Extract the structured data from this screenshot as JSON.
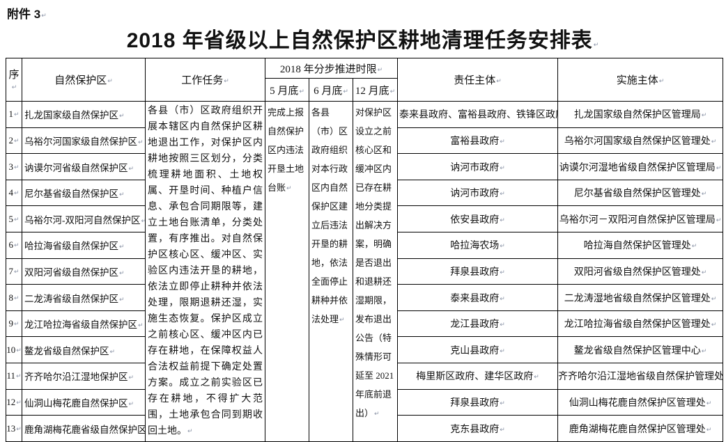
{
  "page": {
    "attachment_label": "附件 3",
    "title": "2018 年省级以上自然保护区耕地清理任务安排表"
  },
  "table": {
    "columns": {
      "no": "序",
      "reserve": "自然保护区",
      "task": "工作任务",
      "timeline_group": "2018 年分步推进时限",
      "timeline_may": "5 月底",
      "timeline_june": "6 月底",
      "timeline_december": "12 月底",
      "responsible": "责任主体",
      "implementer": "实施主体"
    },
    "merged": {
      "task": "各县（市）区政府组织开展本辖区内自然保护区耕地退出工作，对保护区内耕地按照三区划分，分类梳理耕地面积、土地权属、开垦时间、种植户信息、承包合同期限等，建立土地台账清单，分类处置，有序推出。对自然保护区核心区、缓冲区、实验区内违法开垦的耕地，依法立即停止耕种并依法处理，限期退耕还湿，实施生态恢复。保护区成立之前核心区、缓冲区内已存在耕地，在保障权益人合法权益前提下确定处置方案。成立之前实验区已存在耕地，不得扩大范围，土地承包合同到期收回土地。",
      "may": "完成上报自然保护区内违法开垦土地台账",
      "june": "各县（市）区政府组织对本行政区内自然保护区建立后违法开垦的耕地，依法全面停止耕种并依法处理",
      "december": "对保护区设立之前核心区和缓冲区内已存在耕地分类提出解决方案，明确是否退出和退耕还湿期限，发布退出公告（特殊情形可延至 2021 年底前退出）"
    },
    "rows": [
      {
        "no": "1",
        "reserve": "扎龙国家级自然保护区",
        "responsible": "泰来县政府、富裕县政府、铁锋区政府、",
        "implementer": "扎龙国家级自然保护区管理局"
      },
      {
        "no": "2",
        "reserve": "乌裕尔河国家级自然保护区",
        "responsible": "富裕县政府",
        "implementer": "乌裕尔河国家级自然保护区管理处"
      },
      {
        "no": "3",
        "reserve": "讷谟尔河省级自然保护区",
        "responsible": "讷河市政府",
        "implementer": "讷谟尔河湿地省级自然保护区管理局"
      },
      {
        "no": "4",
        "reserve": "尼尔基省级自然保护区",
        "responsible": "讷河市政府",
        "implementer": "尼尔基省级自然保护区管理处"
      },
      {
        "no": "5",
        "reserve": "乌裕尔河-双阳河自然保护区",
        "responsible": "依安县政府",
        "implementer": "乌裕尔河－双阳河自然保护区管理局"
      },
      {
        "no": "6",
        "reserve": "哈拉海省级自然保护区",
        "responsible": "哈拉海农场",
        "implementer": "哈拉海自然保护区管理处"
      },
      {
        "no": "7",
        "reserve": "双阳河省级自然保护区",
        "responsible": "拜泉县政府",
        "implementer": "双阳河省级自然保护区管理处"
      },
      {
        "no": "8",
        "reserve": "二龙涛省级自然保护区",
        "responsible": "泰来县政府",
        "implementer": "二龙涛湿地省级自然保护区管理处"
      },
      {
        "no": "9",
        "reserve": "龙江哈拉海省级自然保护区",
        "responsible": "龙江县政府",
        "implementer": "龙江哈拉海省级自然保护区管理处"
      },
      {
        "no": "10",
        "reserve": "鳌龙省级自然保护区",
        "responsible": "克山县政府",
        "implementer": "鳌龙省级自然保护区管理中心"
      },
      {
        "no": "11",
        "reserve": "齐齐哈尔沿江湿地保护区",
        "responsible": "梅里斯区政府、建华区政府",
        "implementer": "齐齐哈尔沿江湿地省级自然保护管理处"
      },
      {
        "no": "12",
        "reserve": "仙洞山梅花鹿自然保护区",
        "responsible": "拜泉县政府",
        "implementer": "仙洞山梅花鹿自然保护区管理处"
      },
      {
        "no": "13",
        "reserve": "鹿角湖梅花鹿省级自然保护区",
        "responsible": "克东县政府",
        "implementer": "鹿角湖梅花鹿自然保护区管理处"
      }
    ]
  },
  "ui": {
    "return_mark": "↵"
  }
}
